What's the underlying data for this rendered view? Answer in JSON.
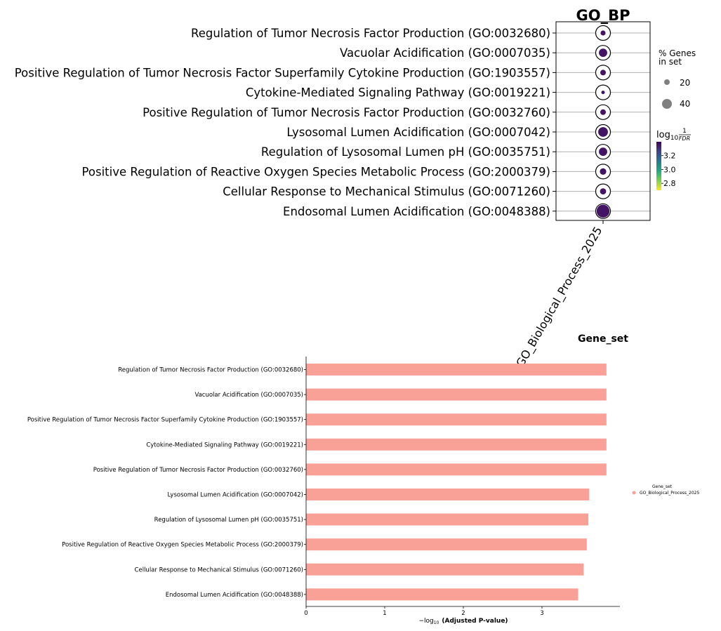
{
  "chart_data": [
    {
      "type": "scatter",
      "title": "GO_BP",
      "x_categories": [
        "GO_Biological_Process_2025"
      ],
      "terms": [
        "Regulation of Tumor Necrosis Factor Production (GO:0032680)",
        "Vacuolar Acidification (GO:0007035)",
        "Positive Regulation of Tumor Necrosis Factor Superfamily Cytokine Production (GO:1903557)",
        "Cytokine-Mediated Signaling Pathway (GO:0019221)",
        "Positive Regulation of Tumor Necrosis Factor Production (GO:0032760)",
        "Lysosomal Lumen Acidification (GO:0007042)",
        "Regulation of Lysosomal Lumen pH (GO:0035751)",
        "Positive Regulation of Reactive Oxygen Species Metabolic Process (GO:2000379)",
        "Cellular Response to Mechanical Stimulus (GO:0071260)",
        "Endosomal Lumen Acidification (GO:0048388)"
      ],
      "pct_genes_in_set": [
        12,
        33,
        15,
        6,
        15,
        45,
        33,
        20,
        18,
        75
      ],
      "log10_inv_fdr": [
        3.36,
        3.36,
        3.36,
        3.36,
        3.36,
        3.36,
        3.36,
        3.36,
        3.36,
        3.36
      ],
      "size_legend": {
        "title_line1": "% Genes",
        "title_line2": "in set",
        "entries": [
          20,
          40
        ]
      },
      "color_legend": {
        "title_prefix": "log",
        "title_sub": "10",
        "title_num": "1",
        "title_den": "FDR",
        "ticks": [
          3.2,
          3.0,
          2.8
        ],
        "range": [
          2.7,
          3.4
        ],
        "palette": "viridis"
      }
    },
    {
      "type": "bar",
      "orientation": "horizontal",
      "title": "Gene_set",
      "categories": [
        "Regulation of Tumor Necrosis Factor Production (GO:0032680)",
        "Vacuolar Acidification (GO:0007035)",
        "Positive Regulation of Tumor Necrosis Factor Superfamily Cytokine Production (GO:1903557)",
        "Cytokine-Mediated Signaling Pathway (GO:0019221)",
        "Positive Regulation of Tumor Necrosis Factor Production (GO:0032760)",
        "Lysosomal Lumen Acidification (GO:0007042)",
        "Regulation of Lysosomal Lumen pH (GO:0035751)",
        "Positive Regulation of Reactive Oxygen Species Metabolic Process (GO:2000379)",
        "Cellular Response to Mechanical Stimulus (GO:0071260)",
        "Endosomal Lumen Acidification (GO:0048388)"
      ],
      "values": [
        3.82,
        3.82,
        3.82,
        3.82,
        3.82,
        3.6,
        3.59,
        3.57,
        3.53,
        3.46
      ],
      "xlim": [
        0,
        4
      ],
      "xticks": [
        0,
        1,
        2,
        3
      ],
      "xlabel_prefix": "−log",
      "xlabel_sub": "10",
      "xlabel_rest": "(Adjusted P-value)",
      "bar_color": "#f9a196",
      "legend": {
        "title": "Gene_set",
        "entries": [
          {
            "name": "GO_Biological_Process_2025",
            "color": "#f9a196"
          }
        ]
      }
    }
  ]
}
